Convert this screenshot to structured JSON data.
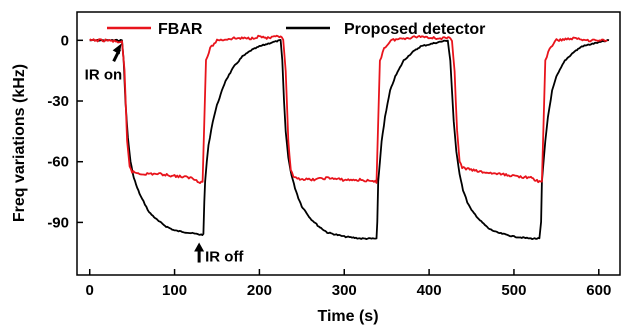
{
  "chart_data": {
    "type": "line",
    "title": "",
    "xlabel": "Time (s)",
    "ylabel": "Freq variations (kHz)",
    "xlim": [
      -15,
      625
    ],
    "ylim": [
      -116,
      14
    ],
    "xticks": [
      0,
      100,
      200,
      300,
      400,
      500,
      600
    ],
    "yticks": [
      0,
      -30,
      -60,
      -90
    ],
    "grid": false,
    "legend_position": "top",
    "series": [
      {
        "name": "FBAR",
        "color": "#e8141c",
        "x": [
          0,
          20,
          38,
          41,
          44,
          47,
          50,
          60,
          80,
          100,
          120,
          130,
          133,
          135,
          137,
          142,
          150,
          170,
          190,
          200,
          210,
          225,
          228,
          231,
          234,
          237,
          240,
          260,
          280,
          300,
          320,
          335,
          338,
          340,
          342,
          347,
          355,
          370,
          390,
          410,
          424,
          427,
          430,
          433,
          436,
          439,
          460,
          480,
          500,
          520,
          530,
          533,
          535,
          537,
          542,
          550,
          570,
          590,
          610
        ],
        "y": [
          0,
          0,
          -1,
          -15,
          -50,
          -62,
          -65,
          -66,
          -66,
          -67,
          -68,
          -70,
          -70,
          -40,
          -10,
          -4,
          0,
          1,
          1,
          2,
          1,
          2,
          0,
          -15,
          -50,
          -64,
          -68,
          -69,
          -68,
          -69,
          -69,
          -70,
          -70,
          -40,
          -10,
          -4,
          0,
          1,
          2,
          1,
          1,
          0,
          -15,
          -45,
          -60,
          -63,
          -65,
          -66,
          -67,
          -68,
          -70,
          -70,
          -40,
          -10,
          -4,
          0,
          1,
          0,
          0
        ]
      },
      {
        "name": "Proposed detector",
        "color": "#000000",
        "x": [
          0,
          20,
          38,
          40,
          42,
          45,
          48,
          52,
          56,
          60,
          65,
          70,
          80,
          90,
          100,
          115,
          130,
          134,
          135,
          136,
          138,
          140,
          145,
          150,
          160,
          170,
          180,
          190,
          200,
          215,
          225,
          227,
          229,
          231,
          234,
          238,
          242,
          246,
          250,
          260,
          270,
          280,
          300,
          320,
          338,
          339,
          340,
          342,
          344,
          348,
          354,
          360,
          370,
          380,
          390,
          410,
          422,
          425,
          427,
          429,
          432,
          436,
          440,
          445,
          450,
          460,
          470,
          480,
          500,
          520,
          530,
          532,
          533,
          535,
          537,
          540,
          545,
          550,
          560,
          570,
          580,
          600,
          612
        ],
        "y": [
          0,
          0,
          0,
          -10,
          -30,
          -48,
          -60,
          -68,
          -73,
          -77,
          -81,
          -85,
          -89,
          -92,
          -94,
          -95,
          -96,
          -96,
          -80,
          -70,
          -60,
          -52,
          -40,
          -32,
          -20,
          -13,
          -8,
          -5,
          -3,
          -1,
          0,
          -10,
          -30,
          -45,
          -58,
          -67,
          -73,
          -78,
          -82,
          -88,
          -92,
          -95,
          -97,
          -98,
          -98,
          -90,
          -70,
          -60,
          -50,
          -38,
          -25,
          -18,
          -10,
          -6,
          -3,
          -1,
          0,
          -10,
          -25,
          -40,
          -55,
          -66,
          -74,
          -80,
          -84,
          -89,
          -93,
          -95,
          -97,
          -98,
          -98,
          -90,
          -70,
          -60,
          -50,
          -38,
          -25,
          -18,
          -10,
          -6,
          -3,
          -1,
          0
        ]
      }
    ],
    "annotations": [
      {
        "text": "IR on",
        "x": 40,
        "y": 0
      },
      {
        "text": "IR off",
        "x": 136,
        "y": -96
      }
    ]
  }
}
